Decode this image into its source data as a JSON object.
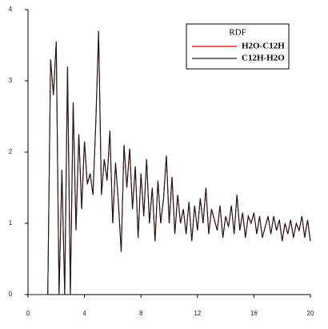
{
  "chart_data": {
    "type": "line",
    "legend_title": "RDF",
    "legend": "top-right",
    "x": [
      0,
      0.2,
      0.4,
      0.6,
      0.8,
      1,
      1.2,
      1.4,
      1.6,
      1.8,
      2,
      2.2,
      2.4,
      2.6,
      2.8,
      3,
      3.2,
      3.4,
      3.6,
      3.8,
      4,
      4.2,
      4.4,
      4.6,
      4.8,
      5,
      5.2,
      5.4,
      5.6,
      5.8,
      6,
      6.2,
      6.4,
      6.6,
      6.8,
      7,
      7.2,
      7.4,
      7.6,
      7.8,
      8,
      8.2,
      8.4,
      8.6,
      8.8,
      9,
      9.2,
      9.4,
      9.6,
      9.8,
      10,
      10.2,
      10.4,
      10.6,
      10.8,
      11,
      11.2,
      11.4,
      11.6,
      11.8,
      12,
      12.2,
      12.4,
      12.6,
      12.8,
      13,
      13.2,
      13.4,
      13.6,
      13.8,
      14,
      14.2,
      14.4,
      14.6,
      14.8,
      15,
      15.2,
      15.4,
      15.6,
      15.8,
      16,
      16.2,
      16.4,
      16.6,
      16.8,
      17,
      17.2,
      17.4,
      17.6,
      17.8,
      18,
      18.2,
      18.4,
      18.6,
      18.8,
      19,
      19.2,
      19.4,
      19.6,
      19.8,
      20
    ],
    "series": [
      {
        "name": "H2O-C12H",
        "color": "#e00000",
        "values": [
          0,
          0,
          0,
          0,
          0,
          0,
          0,
          0,
          3.3,
          2.8,
          3.55,
          0,
          1.75,
          0,
          3.2,
          0,
          2.7,
          0.9,
          2.25,
          1.2,
          2.15,
          1.55,
          1.7,
          1.4,
          2.4,
          3.7,
          1.4,
          1.9,
          1.6,
          2.3,
          1.0,
          1.85,
          1.3,
          0.6,
          2.1,
          1.5,
          2.05,
          1.2,
          1.8,
          0.8,
          1.7,
          1.1,
          1.9,
          1.0,
          1.5,
          0.75,
          1.6,
          1.0,
          1.35,
          1.95,
          1.0,
          1.65,
          0.85,
          1.4,
          1.0,
          1.2,
          0.85,
          1.3,
          0.75,
          1.25,
          0.9,
          1.35,
          1.0,
          1.5,
          0.85,
          1.2,
          1.05,
          0.9,
          1.25,
          0.8,
          1.1,
          0.95,
          1.25,
          0.85,
          1.4,
          0.9,
          1.15,
          0.8,
          1.1,
          1.0,
          1.15,
          0.85,
          1.1,
          0.8,
          0.95,
          1.1,
          0.85,
          1.1,
          0.9,
          1.05,
          0.75,
          1.0,
          0.85,
          1.05,
          0.8,
          1.0,
          0.9,
          1.1,
          0.8,
          1.05,
          0.75
        ]
      },
      {
        "name": "C12H-H2O",
        "color": "#1a1a1a",
        "values": [
          0,
          0,
          0,
          0,
          0,
          0,
          0,
          0,
          3.3,
          2.8,
          3.55,
          0,
          1.75,
          0,
          3.2,
          0,
          2.7,
          0.9,
          2.25,
          1.2,
          2.15,
          1.55,
          1.7,
          1.4,
          2.4,
          3.7,
          1.4,
          1.9,
          1.6,
          2.3,
          1.0,
          1.85,
          1.3,
          0.6,
          2.1,
          1.5,
          2.05,
          1.2,
          1.8,
          0.8,
          1.7,
          1.1,
          1.9,
          1.0,
          1.5,
          0.75,
          1.6,
          1.0,
          1.35,
          1.95,
          1.0,
          1.65,
          0.85,
          1.4,
          1.0,
          1.2,
          0.85,
          1.3,
          0.75,
          1.25,
          0.9,
          1.35,
          1.0,
          1.5,
          0.85,
          1.2,
          1.05,
          0.9,
          1.25,
          0.8,
          1.1,
          0.95,
          1.25,
          0.85,
          1.4,
          0.9,
          1.15,
          0.8,
          1.1,
          1.0,
          1.15,
          0.85,
          1.1,
          0.8,
          0.95,
          1.1,
          0.85,
          1.1,
          0.9,
          1.05,
          0.75,
          1.0,
          0.85,
          1.05,
          0.8,
          1.0,
          0.9,
          1.1,
          0.8,
          1.05,
          0.75
        ]
      }
    ],
    "xlim": [
      0,
      20
    ],
    "xticks": [
      0,
      4,
      8,
      12,
      16,
      20
    ],
    "ylim": [
      0,
      4
    ],
    "yticks": [
      0,
      1,
      2,
      3,
      4
    ],
    "grid": false
  }
}
